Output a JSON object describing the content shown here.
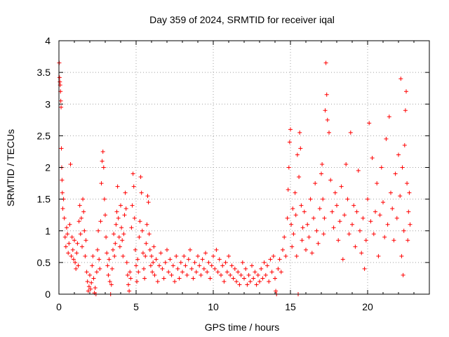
{
  "chart_data": {
    "type": "scatter",
    "title": "Day 359 of 2024, SRMTID for receiver iqal",
    "xlabel": "GPS time / hours",
    "ylabel": "SRMTID / TECUs",
    "xlim": [
      0,
      24
    ],
    "ylim": [
      0,
      4
    ],
    "xticks": [
      0,
      5,
      10,
      15,
      20
    ],
    "xtick_labels": [
      "0",
      "5",
      "10",
      "15",
      "20"
    ],
    "yticks": [
      0,
      0.5,
      1,
      1.5,
      2,
      2.5,
      3,
      3.5,
      4
    ],
    "ytick_labels": [
      "0",
      "0.5",
      "1",
      "1.5",
      "2",
      "2.5",
      "3",
      "3.5",
      "4"
    ],
    "grid": true,
    "marker": "+",
    "color": "#ff0000",
    "series": [
      {
        "name": "SRMTID",
        "points": [
          [
            0.02,
            3.65
          ],
          [
            0.04,
            3.42
          ],
          [
            0.06,
            3.35
          ],
          [
            0.08,
            3.3
          ],
          [
            0.1,
            3.2
          ],
          [
            0.12,
            3.05
          ],
          [
            0.14,
            2.95
          ],
          [
            0.16,
            2.3
          ],
          [
            0.18,
            2.0
          ],
          [
            0.2,
            1.8
          ],
          [
            0.22,
            1.6
          ],
          [
            0.25,
            1.35
          ],
          [
            0.3,
            1.5
          ],
          [
            0.35,
            1.2
          ],
          [
            0.4,
            0.9
          ],
          [
            0.45,
            0.75
          ],
          [
            0.5,
            1.05
          ],
          [
            0.55,
            0.95
          ],
          [
            0.6,
            0.65
          ],
          [
            0.65,
            0.8
          ],
          [
            0.7,
            1.1
          ],
          [
            0.75,
            2.05
          ],
          [
            0.8,
            0.6
          ],
          [
            0.85,
            0.9
          ],
          [
            0.9,
            0.7
          ],
          [
            0.95,
            0.55
          ],
          [
            1.0,
            0.85
          ],
          [
            1.05,
            0.5
          ],
          [
            1.1,
            0.4
          ],
          [
            1.15,
            0.65
          ],
          [
            1.2,
            0.8
          ],
          [
            1.25,
            0.45
          ],
          [
            1.3,
            1.15
          ],
          [
            1.35,
            1.4
          ],
          [
            1.4,
            0.95
          ],
          [
            1.45,
            1.2
          ],
          [
            1.5,
            0.75
          ],
          [
            1.55,
            1.5
          ],
          [
            1.6,
            1.3
          ],
          [
            1.65,
            1.0
          ],
          [
            1.7,
            0.6
          ],
          [
            1.75,
            0.85
          ],
          [
            1.8,
            0.35
          ],
          [
            1.85,
            0.2
          ],
          [
            1.9,
            0.05
          ],
          [
            1.95,
            0.12
          ],
          [
            2.0,
            0.3
          ],
          [
            2.05,
            0.08
          ],
          [
            2.1,
            0.18
          ],
          [
            2.15,
            0.45
          ],
          [
            2.2,
            0.6
          ],
          [
            2.25,
            0.25
          ],
          [
            2.3,
            0.02
          ],
          [
            2.35,
            0.1
          ],
          [
            2.4,
            0.0
          ],
          [
            2.45,
            0.35
          ],
          [
            2.5,
            0.7
          ],
          [
            2.55,
            1.0
          ],
          [
            2.6,
            0.55
          ],
          [
            2.65,
            0.4
          ],
          [
            2.7,
            1.15
          ],
          [
            2.75,
            1.75
          ],
          [
            2.8,
            2.1
          ],
          [
            2.85,
            2.25
          ],
          [
            2.9,
            2.0
          ],
          [
            2.95,
            1.5
          ],
          [
            3.0,
            1.25
          ],
          [
            3.05,
            0.9
          ],
          [
            3.1,
            0.65
          ],
          [
            3.15,
            0.45
          ],
          [
            3.2,
            0.3
          ],
          [
            3.25,
            0.55
          ],
          [
            3.3,
            0.2
          ],
          [
            3.35,
            0.0
          ],
          [
            3.4,
            0.15
          ],
          [
            3.45,
            0.4
          ],
          [
            3.5,
            0.7
          ],
          [
            3.55,
            0.95
          ],
          [
            3.6,
            0.6
          ],
          [
            3.65,
            0.8
          ],
          [
            3.7,
            1.1
          ],
          [
            3.75,
            1.3
          ],
          [
            3.8,
            1.7
          ],
          [
            3.85,
            1.2
          ],
          [
            3.9,
            0.9
          ],
          [
            3.95,
            0.75
          ],
          [
            4.0,
            1.4
          ],
          [
            4.05,
            1.05
          ],
          [
            4.1,
            0.85
          ],
          [
            4.15,
            0.6
          ],
          [
            4.2,
            0.95
          ],
          [
            4.25,
            1.25
          ],
          [
            4.3,
            1.6
          ],
          [
            4.35,
            1.35
          ],
          [
            4.4,
            0.5
          ],
          [
            4.45,
            0.3
          ],
          [
            4.5,
            0.15
          ],
          [
            4.55,
            0.05
          ],
          [
            4.6,
            0.35
          ],
          [
            4.65,
            0.25
          ],
          [
            4.7,
            1.05
          ],
          [
            4.75,
            1.4
          ],
          [
            4.8,
            1.9
          ],
          [
            4.85,
            1.7
          ],
          [
            4.9,
            1.2
          ],
          [
            4.95,
            0.7
          ],
          [
            5.0,
            0.45
          ],
          [
            5.05,
            0.2
          ],
          [
            5.1,
            0.55
          ],
          [
            5.15,
            0.35
          ],
          [
            5.2,
            0.9
          ],
          [
            5.25,
            1.15
          ],
          [
            5.3,
            1.85
          ],
          [
            5.35,
            1.6
          ],
          [
            5.4,
            1.0
          ],
          [
            5.45,
            0.65
          ],
          [
            5.5,
            0.4
          ],
          [
            5.55,
            0.25
          ],
          [
            5.6,
            0.6
          ],
          [
            5.65,
            0.8
          ],
          [
            5.7,
            1.1
          ],
          [
            5.75,
            1.55
          ],
          [
            5.8,
            1.45
          ],
          [
            5.85,
            0.95
          ],
          [
            5.9,
            0.7
          ],
          [
            5.95,
            0.45
          ],
          [
            6.0,
            0.6
          ],
          [
            6.05,
            0.35
          ],
          [
            6.1,
            0.5
          ],
          [
            6.15,
            0.75
          ],
          [
            6.2,
            0.3
          ],
          [
            6.3,
            0.55
          ],
          [
            6.4,
            0.2
          ],
          [
            6.5,
            0.45
          ],
          [
            6.6,
            0.65
          ],
          [
            6.7,
            0.4
          ],
          [
            6.8,
            0.25
          ],
          [
            6.9,
            0.5
          ],
          [
            7.0,
            0.7
          ],
          [
            7.1,
            0.35
          ],
          [
            7.2,
            0.55
          ],
          [
            7.3,
            0.3
          ],
          [
            7.4,
            0.45
          ],
          [
            7.5,
            0.2
          ],
          [
            7.6,
            0.6
          ],
          [
            7.7,
            0.4
          ],
          [
            7.8,
            0.25
          ],
          [
            7.9,
            0.5
          ],
          [
            8.0,
            0.35
          ],
          [
            8.1,
            0.6
          ],
          [
            8.2,
            0.45
          ],
          [
            8.3,
            0.3
          ],
          [
            8.4,
            0.55
          ],
          [
            8.5,
            0.7
          ],
          [
            8.6,
            0.4
          ],
          [
            8.7,
            0.25
          ],
          [
            8.8,
            0.5
          ],
          [
            8.9,
            0.35
          ],
          [
            9.0,
            0.6
          ],
          [
            9.1,
            0.45
          ],
          [
            9.2,
            0.3
          ],
          [
            9.3,
            0.55
          ],
          [
            9.4,
            0.4
          ],
          [
            9.5,
            0.65
          ],
          [
            9.6,
            0.35
          ],
          [
            9.7,
            0.5
          ],
          [
            9.8,
            0.25
          ],
          [
            9.9,
            0.45
          ],
          [
            10.0,
            0.6
          ],
          [
            10.1,
            0.4
          ],
          [
            10.2,
            0.7
          ],
          [
            10.3,
            0.35
          ],
          [
            10.4,
            0.55
          ],
          [
            10.5,
            0.3
          ],
          [
            10.6,
            0.45
          ],
          [
            10.7,
            0.2
          ],
          [
            10.8,
            0.5
          ],
          [
            10.9,
            0.35
          ],
          [
            11.0,
            0.6
          ],
          [
            11.1,
            0.3
          ],
          [
            11.2,
            0.45
          ],
          [
            11.3,
            0.25
          ],
          [
            11.4,
            0.4
          ],
          [
            11.5,
            0.2
          ],
          [
            11.6,
            0.35
          ],
          [
            11.7,
            0.15
          ],
          [
            11.8,
            0.3
          ],
          [
            11.9,
            0.5
          ],
          [
            12.0,
            0.25
          ],
          [
            12.1,
            0.4
          ],
          [
            12.2,
            0.15
          ],
          [
            12.3,
            0.3
          ],
          [
            12.4,
            0.2
          ],
          [
            12.5,
            0.45
          ],
          [
            12.6,
            0.25
          ],
          [
            12.7,
            0.35
          ],
          [
            12.8,
            0.15
          ],
          [
            12.9,
            0.3
          ],
          [
            13.0,
            0.2
          ],
          [
            13.1,
            0.4
          ],
          [
            13.2,
            0.25
          ],
          [
            13.3,
            0.5
          ],
          [
            13.4,
            0.3
          ],
          [
            13.5,
            0.45
          ],
          [
            13.6,
            0.2
          ],
          [
            13.7,
            0.55
          ],
          [
            13.8,
            0.35
          ],
          [
            13.9,
            0.6
          ],
          [
            14.0,
            0.25
          ],
          [
            14.05,
            0.05
          ],
          [
            14.1,
            0.0
          ],
          [
            14.2,
            0.4
          ],
          [
            14.3,
            0.55
          ],
          [
            14.4,
            0.35
          ],
          [
            14.5,
            0.7
          ],
          [
            14.6,
            0.9
          ],
          [
            14.7,
            0.6
          ],
          [
            14.8,
            1.2
          ],
          [
            14.85,
            1.65
          ],
          [
            14.9,
            2.0
          ],
          [
            14.95,
            2.4
          ],
          [
            15.0,
            2.6
          ],
          [
            15.05,
            1.1
          ],
          [
            15.1,
            0.75
          ],
          [
            15.15,
            1.35
          ],
          [
            15.2,
            0.95
          ],
          [
            15.3,
            1.6
          ],
          [
            15.35,
            1.25
          ],
          [
            15.4,
            0.6
          ],
          [
            15.45,
            2.2
          ],
          [
            15.5,
            0.0
          ],
          [
            15.55,
            1.85
          ],
          [
            15.6,
            2.55
          ],
          [
            15.65,
            2.3
          ],
          [
            15.7,
            1.4
          ],
          [
            15.75,
            0.85
          ],
          [
            15.8,
            1.05
          ],
          [
            15.9,
            1.3
          ],
          [
            16.0,
            0.7
          ],
          [
            16.1,
            1.1
          ],
          [
            16.2,
            0.9
          ],
          [
            16.3,
            1.5
          ],
          [
            16.4,
            0.65
          ],
          [
            16.5,
            1.2
          ],
          [
            16.6,
            1.75
          ],
          [
            16.7,
            1.0
          ],
          [
            16.8,
            0.8
          ],
          [
            16.9,
            1.35
          ],
          [
            17.0,
            1.9
          ],
          [
            17.05,
            2.05
          ],
          [
            17.1,
            1.5
          ],
          [
            17.15,
            0.95
          ],
          [
            17.2,
            1.2
          ],
          [
            17.25,
            2.9
          ],
          [
            17.3,
            3.65
          ],
          [
            17.35,
            3.15
          ],
          [
            17.4,
            2.75
          ],
          [
            17.5,
            2.55
          ],
          [
            17.6,
            1.8
          ],
          [
            17.7,
            1.3
          ],
          [
            17.8,
            1.05
          ],
          [
            17.9,
            1.6
          ],
          [
            18.0,
            1.4
          ],
          [
            18.1,
            0.85
          ],
          [
            18.2,
            1.15
          ],
          [
            18.3,
            1.7
          ],
          [
            18.4,
            0.55
          ],
          [
            18.5,
            1.25
          ],
          [
            18.6,
            2.05
          ],
          [
            18.7,
            1.5
          ],
          [
            18.8,
            0.95
          ],
          [
            18.9,
            2.55
          ],
          [
            19.0,
            1.1
          ],
          [
            19.1,
            1.4
          ],
          [
            19.2,
            0.75
          ],
          [
            19.3,
            1.3
          ],
          [
            19.4,
            1.95
          ],
          [
            19.5,
            1.0
          ],
          [
            19.6,
            0.65
          ],
          [
            19.7,
            1.2
          ],
          [
            19.8,
            0.4
          ],
          [
            19.9,
            0.85
          ],
          [
            20.0,
            1.5
          ],
          [
            20.1,
            2.7
          ],
          [
            20.2,
            1.15
          ],
          [
            20.3,
            2.15
          ],
          [
            20.4,
            0.95
          ],
          [
            20.5,
            1.3
          ],
          [
            20.6,
            1.75
          ],
          [
            20.7,
            0.6
          ],
          [
            20.8,
            1.25
          ],
          [
            20.9,
            2.0
          ],
          [
            21.0,
            1.45
          ],
          [
            21.1,
            0.9
          ],
          [
            21.2,
            2.45
          ],
          [
            21.3,
            1.1
          ],
          [
            21.4,
            2.8
          ],
          [
            21.5,
            1.6
          ],
          [
            21.6,
            1.35
          ],
          [
            21.7,
            0.85
          ],
          [
            21.8,
            1.9
          ],
          [
            21.9,
            1.2
          ],
          [
            22.0,
            2.2
          ],
          [
            22.1,
            1.55
          ],
          [
            22.15,
            3.4
          ],
          [
            22.2,
            0.6
          ],
          [
            22.25,
            2.0
          ],
          [
            22.3,
            0.3
          ],
          [
            22.35,
            1.0
          ],
          [
            22.4,
            2.35
          ],
          [
            22.45,
            2.9
          ],
          [
            22.5,
            3.2
          ],
          [
            22.55,
            1.75
          ],
          [
            22.6,
            0.85
          ],
          [
            22.65,
            1.3
          ],
          [
            22.7,
            1.6
          ],
          [
            22.75,
            1.1
          ]
        ]
      }
    ]
  }
}
